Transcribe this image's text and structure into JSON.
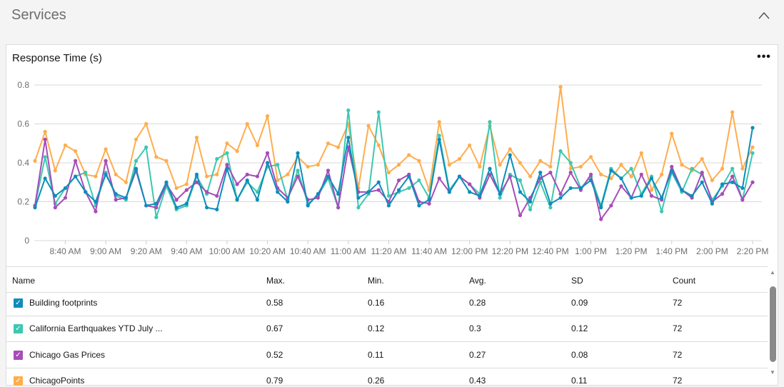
{
  "section": {
    "title": "Services"
  },
  "card": {
    "title": "Response Time (s)",
    "menu": "•••"
  },
  "chart_data": {
    "type": "line",
    "title": "Response Time (s)",
    "xlabel": "",
    "ylabel": "",
    "ylim": [
      0,
      0.8
    ],
    "yticks": [
      "0",
      "0.2",
      "0.4",
      "0.6",
      "0.8"
    ],
    "ytick_values": [
      0,
      0.2,
      0.4,
      0.6,
      0.8
    ],
    "x_start": "8:25 AM",
    "x_interval_minutes": 5,
    "xtick_labels": [
      "8:40 AM",
      "9:00 AM",
      "9:20 AM",
      "9:40 AM",
      "10:00 AM",
      "10:20 AM",
      "10:40 AM",
      "11:00 AM",
      "11:20 AM",
      "11:40 AM",
      "12:00 PM",
      "12:20 PM",
      "12:40 PM",
      "1:00 PM",
      "1:20 PM",
      "1:40 PM",
      "2:00 PM",
      "2:20 PM"
    ],
    "xtick_indices": [
      3,
      7,
      11,
      15,
      19,
      23,
      27,
      31,
      35,
      39,
      43,
      47,
      51,
      55,
      59,
      63,
      67,
      71
    ],
    "grid": true,
    "series": [
      {
        "name": "ChicagoPoints",
        "color": "#ffad4d",
        "values": [
          0.41,
          0.56,
          0.36,
          0.49,
          0.46,
          0.34,
          0.33,
          0.47,
          0.34,
          0.3,
          0.52,
          0.6,
          0.43,
          0.41,
          0.27,
          0.29,
          0.53,
          0.33,
          0.34,
          0.5,
          0.46,
          0.6,
          0.49,
          0.64,
          0.31,
          0.34,
          0.43,
          0.38,
          0.39,
          0.5,
          0.48,
          0.6,
          0.27,
          0.59,
          0.49,
          0.35,
          0.39,
          0.44,
          0.41,
          0.26,
          0.61,
          0.39,
          0.42,
          0.49,
          0.38,
          0.59,
          0.39,
          0.47,
          0.4,
          0.33,
          0.41,
          0.38,
          0.79,
          0.37,
          0.38,
          0.43,
          0.34,
          0.32,
          0.39,
          0.33,
          0.45,
          0.26,
          0.34,
          0.55,
          0.39,
          0.36,
          0.42,
          0.31,
          0.37,
          0.66,
          0.37,
          0.48
        ]
      },
      {
        "name": "California Earthquakes YTD July ...",
        "color": "#3cc8b0",
        "values": [
          0.18,
          0.43,
          0.19,
          0.27,
          0.33,
          0.35,
          0.18,
          0.35,
          0.23,
          0.21,
          0.41,
          0.48,
          0.12,
          0.28,
          0.16,
          0.18,
          0.33,
          0.24,
          0.42,
          0.45,
          0.21,
          0.3,
          0.25,
          0.38,
          0.39,
          0.21,
          0.36,
          0.19,
          0.23,
          0.32,
          0.17,
          0.67,
          0.17,
          0.24,
          0.66,
          0.23,
          0.25,
          0.27,
          0.31,
          0.22,
          0.54,
          0.26,
          0.33,
          0.29,
          0.24,
          0.61,
          0.22,
          0.34,
          0.31,
          0.16,
          0.3,
          0.17,
          0.46,
          0.4,
          0.27,
          0.33,
          0.18,
          0.37,
          0.32,
          0.37,
          0.24,
          0.33,
          0.15,
          0.35,
          0.25,
          0.37,
          0.34,
          0.21,
          0.28,
          0.37,
          0.21,
          0.45
        ]
      },
      {
        "name": "Chicago Gas Prices",
        "color": "#a84cb8",
        "values": [
          0.18,
          0.52,
          0.17,
          0.22,
          0.41,
          0.25,
          0.15,
          0.41,
          0.21,
          0.22,
          0.36,
          0.18,
          0.17,
          0.29,
          0.21,
          0.26,
          0.3,
          0.25,
          0.23,
          0.39,
          0.29,
          0.34,
          0.33,
          0.45,
          0.27,
          0.22,
          0.33,
          0.21,
          0.22,
          0.36,
          0.17,
          0.48,
          0.25,
          0.25,
          0.26,
          0.2,
          0.31,
          0.34,
          0.2,
          0.19,
          0.32,
          0.25,
          0.33,
          0.29,
          0.22,
          0.34,
          0.24,
          0.33,
          0.13,
          0.22,
          0.32,
          0.35,
          0.24,
          0.35,
          0.26,
          0.34,
          0.11,
          0.18,
          0.28,
          0.22,
          0.34,
          0.23,
          0.21,
          0.38,
          0.26,
          0.22,
          0.35,
          0.2,
          0.24,
          0.33,
          0.21,
          0.3
        ]
      },
      {
        "name": "Building footprints",
        "color": "#0e8dbb",
        "values": [
          0.17,
          0.32,
          0.23,
          0.27,
          0.33,
          0.25,
          0.2,
          0.34,
          0.24,
          0.22,
          0.37,
          0.18,
          0.19,
          0.3,
          0.17,
          0.19,
          0.34,
          0.17,
          0.16,
          0.37,
          0.21,
          0.31,
          0.21,
          0.4,
          0.25,
          0.2,
          0.45,
          0.18,
          0.24,
          0.33,
          0.24,
          0.53,
          0.22,
          0.25,
          0.3,
          0.18,
          0.26,
          0.33,
          0.18,
          0.21,
          0.52,
          0.25,
          0.33,
          0.25,
          0.23,
          0.37,
          0.24,
          0.44,
          0.25,
          0.2,
          0.35,
          0.19,
          0.22,
          0.27,
          0.27,
          0.31,
          0.17,
          0.36,
          0.32,
          0.22,
          0.23,
          0.32,
          0.22,
          0.36,
          0.26,
          0.23,
          0.3,
          0.19,
          0.29,
          0.3,
          0.27,
          0.58
        ]
      }
    ]
  },
  "table": {
    "headers": {
      "name": "Name",
      "max": "Max.",
      "min": "Min.",
      "avg": "Avg.",
      "sd": "SD",
      "count": "Count"
    },
    "rows": [
      {
        "name": "Building footprints",
        "color": "#0e8dbb",
        "checked": true,
        "max": "0.58",
        "min": "0.16",
        "avg": "0.28",
        "sd": "0.09",
        "count": "72"
      },
      {
        "name": "California Earthquakes YTD July ...",
        "color": "#3cc8b0",
        "checked": true,
        "max": "0.67",
        "min": "0.12",
        "avg": "0.3",
        "sd": "0.12",
        "count": "72"
      },
      {
        "name": "Chicago Gas Prices",
        "color": "#a84cb8",
        "checked": true,
        "max": "0.52",
        "min": "0.11",
        "avg": "0.27",
        "sd": "0.08",
        "count": "72"
      },
      {
        "name": "ChicagoPoints",
        "color": "#ffad4d",
        "checked": true,
        "max": "0.79",
        "min": "0.26",
        "avg": "0.43",
        "sd": "0.11",
        "count": "72"
      }
    ]
  }
}
